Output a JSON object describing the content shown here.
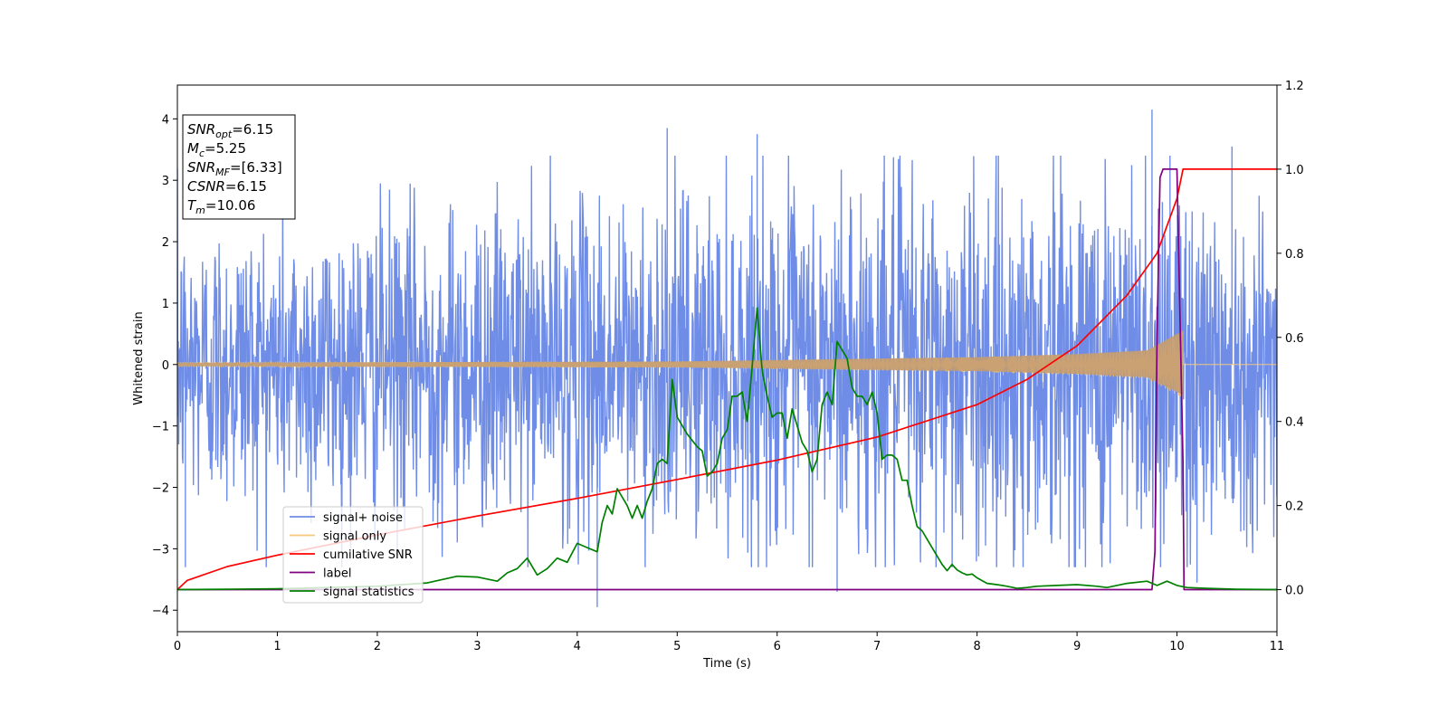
{
  "chart_data": {
    "type": "line",
    "xlabel": "Time (s)",
    "ylabel": "Whitened strain",
    "xlim": [
      0,
      11
    ],
    "ylim_left": [
      -4.35,
      4.55
    ],
    "ylim_right": [
      -0.1,
      1.2
    ],
    "x_ticks": [
      0,
      1,
      2,
      3,
      4,
      5,
      6,
      7,
      8,
      9,
      10,
      11
    ],
    "y_left_ticks": [
      4,
      3,
      2,
      1,
      0,
      -1,
      -2,
      -3,
      -4
    ],
    "y_right_ticks": [
      1.2,
      1.0,
      0.8,
      0.6,
      0.4,
      0.2,
      0.0
    ],
    "grid": false,
    "legend_position": "lower-left",
    "annotation": {
      "lines": [
        {
          "main": "SNR",
          "sub": "opt",
          "rest": "=6.15"
        },
        {
          "main": "M",
          "sub": "c",
          "rest": "=5.25"
        },
        {
          "main": "SNR",
          "sub": "MF",
          "rest": "=[6.33]"
        },
        {
          "main": "CSNR",
          "sub": "",
          "rest": "=6.15"
        },
        {
          "main": "T",
          "sub": "m",
          "rest": "=10.06"
        }
      ]
    },
    "series": [
      {
        "name": "signal+ noise",
        "color": "#6f8de6",
        "axis": "left",
        "kind": "noise",
        "envelope": [
          [
            0,
            2.3
          ],
          [
            4.2,
            2.6
          ],
          [
            9.8,
            3.3
          ],
          [
            11,
            2.4
          ]
        ],
        "peaks": [
          [
            0.08,
            -3.3
          ],
          [
            4.2,
            -3.95
          ],
          [
            4.9,
            3.85
          ],
          [
            5.8,
            3.75
          ],
          [
            6.6,
            -3.7
          ],
          [
            9.75,
            4.15
          ],
          [
            9.93,
            3.4
          ],
          [
            10.2,
            -3.55
          ],
          [
            10.55,
            3.55
          ]
        ]
      },
      {
        "name": "signal only",
        "color": "#f5c97a",
        "axis": "left",
        "kind": "chirp",
        "amplitude": [
          [
            0,
            0.03
          ],
          [
            5,
            0.05
          ],
          [
            8,
            0.12
          ],
          [
            9,
            0.17
          ],
          [
            9.7,
            0.23
          ],
          [
            10.06,
            0.55
          ]
        ],
        "end_time": 10.06
      },
      {
        "name": "cumilative SNR",
        "color": "#ff0000",
        "axis": "right",
        "kind": "curve",
        "x": [
          0,
          0.1,
          0.5,
          1,
          2,
          3,
          4,
          5,
          6,
          7,
          8,
          8.5,
          9,
          9.5,
          9.8,
          10,
          10.06,
          11
        ],
        "y": [
          0,
          0.022,
          0.055,
          0.082,
          0.13,
          0.175,
          0.217,
          0.262,
          0.308,
          0.363,
          0.44,
          0.5,
          0.58,
          0.7,
          0.8,
          0.93,
          1.0,
          1.0
        ]
      },
      {
        "name": "label",
        "color": "#800080",
        "axis": "right",
        "kind": "curve",
        "x": [
          0,
          9.75,
          9.78,
          9.8,
          9.83,
          9.86,
          10.0,
          10.06,
          10.07,
          11
        ],
        "y": [
          0,
          0,
          0.09,
          0.6,
          0.98,
          1.0,
          1.0,
          0.3,
          0,
          0
        ]
      },
      {
        "name": "signal statistics",
        "color": "#008000",
        "axis": "right",
        "kind": "curve",
        "x": [
          0,
          0.5,
          1,
          1.5,
          2,
          2.5,
          2.8,
          3.0,
          3.2,
          3.3,
          3.4,
          3.5,
          3.6,
          3.7,
          3.8,
          3.9,
          4.0,
          4.1,
          4.2,
          4.25,
          4.3,
          4.35,
          4.4,
          4.5,
          4.55,
          4.6,
          4.65,
          4.7,
          4.75,
          4.8,
          4.85,
          4.9,
          4.95,
          5.0,
          5.1,
          5.2,
          5.25,
          5.3,
          5.35,
          5.4,
          5.45,
          5.5,
          5.55,
          5.6,
          5.65,
          5.7,
          5.75,
          5.8,
          5.85,
          5.9,
          5.95,
          6.0,
          6.05,
          6.1,
          6.15,
          6.2,
          6.25,
          6.3,
          6.35,
          6.4,
          6.45,
          6.5,
          6.55,
          6.6,
          6.65,
          6.7,
          6.75,
          6.8,
          6.85,
          6.9,
          6.95,
          7.0,
          7.05,
          7.1,
          7.15,
          7.2,
          7.25,
          7.3,
          7.35,
          7.4,
          7.45,
          7.5,
          7.55,
          7.6,
          7.65,
          7.7,
          7.75,
          7.8,
          7.85,
          7.9,
          7.95,
          8.0,
          8.1,
          8.2,
          8.3,
          8.4,
          8.5,
          8.6,
          8.8,
          9.0,
          9.2,
          9.3,
          9.5,
          9.7,
          9.8,
          9.9,
          10.0,
          10.1,
          10.3,
          10.6,
          11
        ],
        "y": [
          0,
          0.001,
          0.002,
          0.005,
          0.008,
          0.016,
          0.032,
          0.03,
          0.02,
          0.04,
          0.05,
          0.075,
          0.035,
          0.05,
          0.075,
          0.065,
          0.11,
          0.1,
          0.09,
          0.16,
          0.2,
          0.18,
          0.24,
          0.2,
          0.17,
          0.2,
          0.17,
          0.21,
          0.24,
          0.3,
          0.31,
          0.3,
          0.5,
          0.41,
          0.37,
          0.34,
          0.33,
          0.27,
          0.28,
          0.3,
          0.36,
          0.38,
          0.46,
          0.46,
          0.47,
          0.4,
          0.53,
          0.67,
          0.52,
          0.46,
          0.41,
          0.42,
          0.42,
          0.36,
          0.43,
          0.39,
          0.35,
          0.33,
          0.28,
          0.31,
          0.44,
          0.47,
          0.44,
          0.59,
          0.57,
          0.55,
          0.48,
          0.46,
          0.46,
          0.44,
          0.47,
          0.42,
          0.31,
          0.32,
          0.32,
          0.31,
          0.26,
          0.26,
          0.2,
          0.15,
          0.14,
          0.12,
          0.1,
          0.08,
          0.06,
          0.045,
          0.06,
          0.047,
          0.04,
          0.035,
          0.037,
          0.028,
          0.015,
          0.012,
          0.008,
          0.003,
          0.005,
          0.008,
          0.01,
          0.012,
          0.008,
          0.005,
          0.015,
          0.02,
          0.01,
          0.02,
          0.01,
          0.005,
          0.003,
          0.001,
          0
        ]
      }
    ]
  }
}
